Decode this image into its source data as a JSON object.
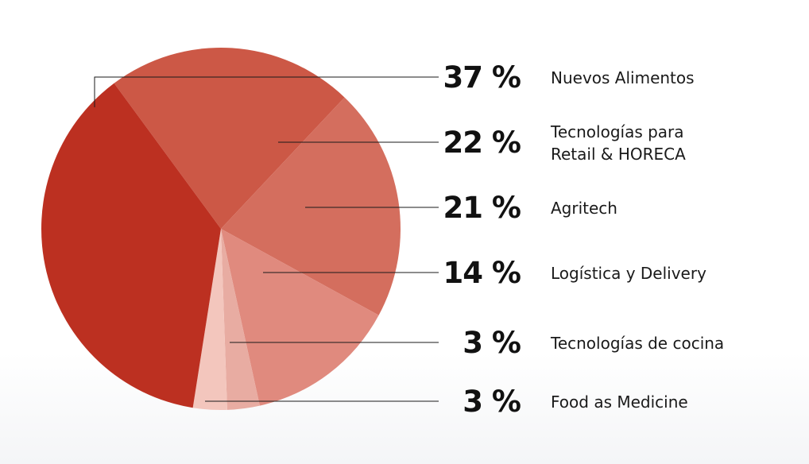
{
  "chart_data": {
    "type": "pie",
    "title": "",
    "categories": [
      "Nuevos Alimentos",
      "Tecnologías para Retail & HORECA",
      "Agritech",
      "Logística y Delivery",
      "Tecnologías de cocina",
      "Food as Medicine"
    ],
    "values": [
      37,
      22,
      21,
      14,
      3,
      3
    ],
    "value_labels": [
      "37 %",
      "22 %",
      "21 %",
      "14 %",
      "3 %",
      "3 %"
    ],
    "label_lines": [
      [
        "Nuevos Alimentos"
      ],
      [
        "Tecnologías para",
        "Retail & HORECA"
      ],
      [
        "Agritech"
      ],
      [
        "Logística y Delivery"
      ],
      [
        "Tecnologías de cocina"
      ],
      [
        "Food as Medicine"
      ]
    ],
    "colors": [
      "#bc3021",
      "#cc5846",
      "#d46e5e",
      "#e08a7e",
      "#e8aca2",
      "#f3c6bd"
    ],
    "legend_position": "right"
  }
}
